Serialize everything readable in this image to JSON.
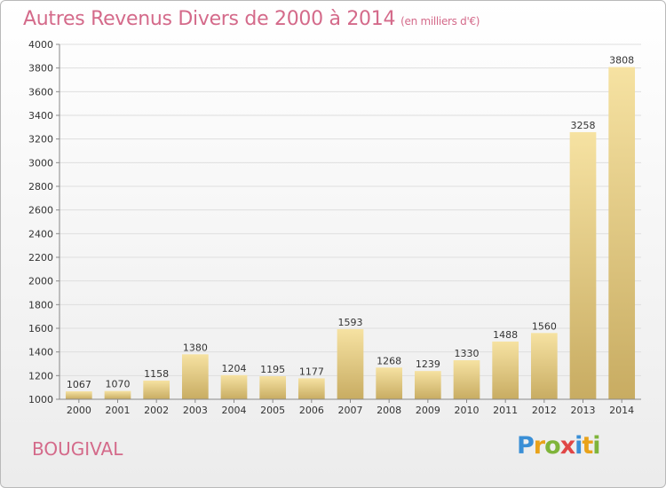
{
  "header": {
    "title": "Autres Revenus Divers de 2000 à 2014",
    "unit": "(en milliers d'€)"
  },
  "footer": {
    "commune": "BOUGIVAL",
    "logo": [
      "P",
      "r",
      "o",
      "x",
      "i",
      "t",
      "i"
    ]
  },
  "colors": {
    "bar_light": "#f6e2a2",
    "bar_dark": "#c8ac62",
    "title": "#d46a8a"
  },
  "chart_data": {
    "type": "bar",
    "title": "Autres Revenus Divers de 2000 à 2014",
    "categories": [
      "2000",
      "2001",
      "2002",
      "2003",
      "2004",
      "2005",
      "2006",
      "2007",
      "2008",
      "2009",
      "2010",
      "2011",
      "2012",
      "2013",
      "2014"
    ],
    "values": [
      1067,
      1070,
      1158,
      1380,
      1204,
      1195,
      1177,
      1593,
      1268,
      1239,
      1330,
      1488,
      1560,
      3258,
      3808
    ],
    "ylim": [
      1000,
      4000
    ],
    "yticks": [
      1000,
      1200,
      1400,
      1600,
      1800,
      2000,
      2200,
      2400,
      2600,
      2800,
      3000,
      3200,
      3400,
      3600,
      3800,
      4000
    ],
    "xlabel": "",
    "ylabel": "",
    "grid": true
  }
}
